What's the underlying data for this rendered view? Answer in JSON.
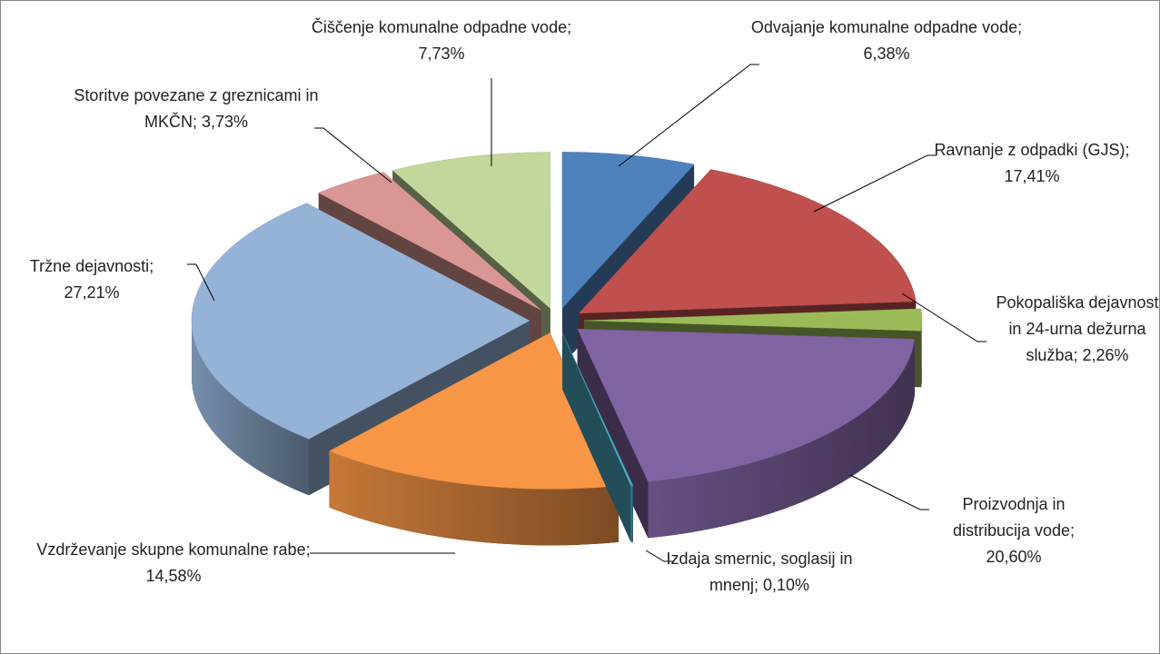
{
  "chart_data": {
    "type": "pie",
    "categories": [
      "Odvajanje komunalne odpadne vode",
      "Ravnanje z odpadki (GJS)",
      "Pokopališka dejavnost in 24-urna dežurna služba",
      "Proizvodnja in distribucija vode",
      "Izdaja smernic, soglasij in mnenj",
      "Vzdrževanje skupne komunalne rabe",
      "Tržne dejavnosti",
      "Storitve povezane z greznicami in MKČN",
      "Čiščenje komunalne odpadne vode"
    ],
    "values": [
      6.38,
      17.41,
      2.26,
      20.6,
      0.1,
      14.58,
      27.21,
      3.73,
      7.73
    ],
    "value_labels": [
      "6,38%",
      "17,41%",
      "2,26%",
      "20,60%",
      "0,10%",
      "14,58%",
      "27,21%",
      "3,73%",
      "7,73%"
    ],
    "label_separator": ";",
    "colors": [
      "#4f81bd",
      "#c0504d",
      "#9bbb59",
      "#8064a2",
      "#4bacc6",
      "#f79646",
      "#95b3d7",
      "#d99694",
      "#c3d69b"
    ]
  }
}
